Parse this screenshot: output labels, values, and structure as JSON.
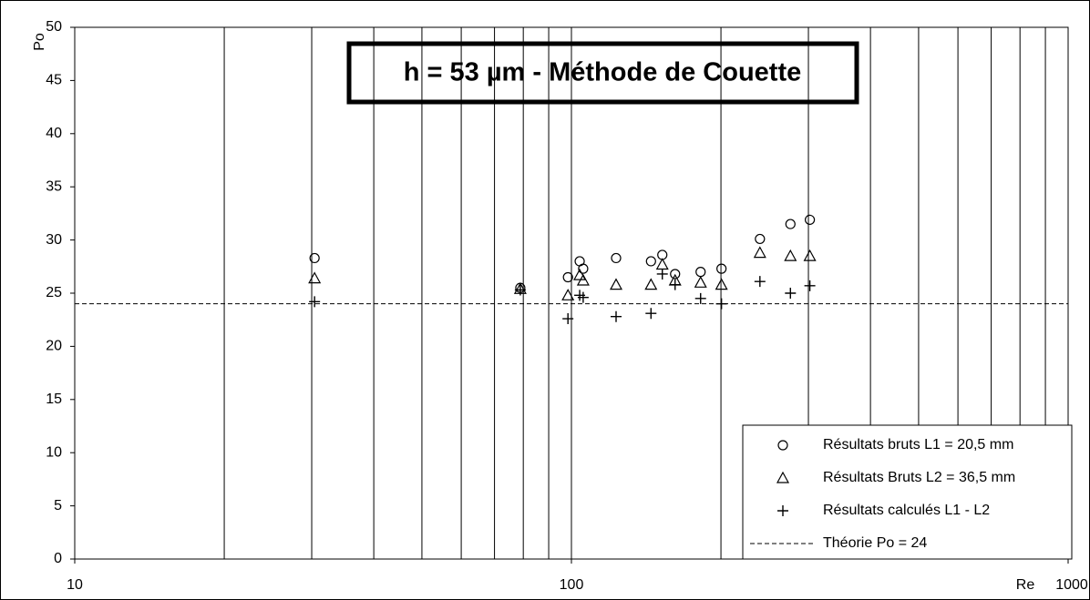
{
  "chart_data": {
    "type": "scatter",
    "title": "h = 53 µm - Méthode de Couette",
    "xlabel": "Re",
    "ylabel": "Po",
    "xlog": true,
    "grid": true,
    "legend": "lower right",
    "xlim": [
      10,
      1000
    ],
    "xticks": [
      10,
      100,
      1000
    ],
    "ylim": [
      0,
      50
    ],
    "yticks": [
      0,
      5,
      10,
      15,
      20,
      25,
      30,
      35,
      40,
      45,
      50
    ],
    "x": [
      30.4,
      78.9,
      98.4,
      103.9,
      105.6,
      123,
      144.6,
      152.4,
      161.7,
      182,
      200.5,
      239.6,
      276,
      302
    ],
    "series": [
      {
        "name": "Résultats bruts L1 = 20,5 mm",
        "marker": "circle",
        "color": "#000000",
        "values": [
          28.3,
          25.5,
          26.5,
          28.0,
          27.3,
          28.3,
          28.0,
          28.6,
          26.8,
          27.0,
          27.3,
          30.1,
          31.5,
          31.9
        ]
      },
      {
        "name": "Résultats Bruts L2 = 36,5 mm",
        "marker": "triangle",
        "color": "#000000",
        "values": [
          26.4,
          25.4,
          24.8,
          26.7,
          26.2,
          25.8,
          25.8,
          27.7,
          26.2,
          26.0,
          25.8,
          28.8,
          28.5,
          28.5
        ]
      },
      {
        "name": "Résultats calculés L1 - L2",
        "marker": "plus",
        "color": "#000000",
        "values": [
          24.2,
          25.3,
          22.6,
          24.8,
          24.6,
          22.8,
          23.1,
          26.8,
          25.8,
          24.5,
          24.0,
          26.1,
          25.0,
          25.7
        ]
      }
    ],
    "reference_lines": [
      {
        "name": "Théorie Po = 24",
        "value": 24,
        "style": "dashed",
        "color": "#000000"
      }
    ]
  }
}
